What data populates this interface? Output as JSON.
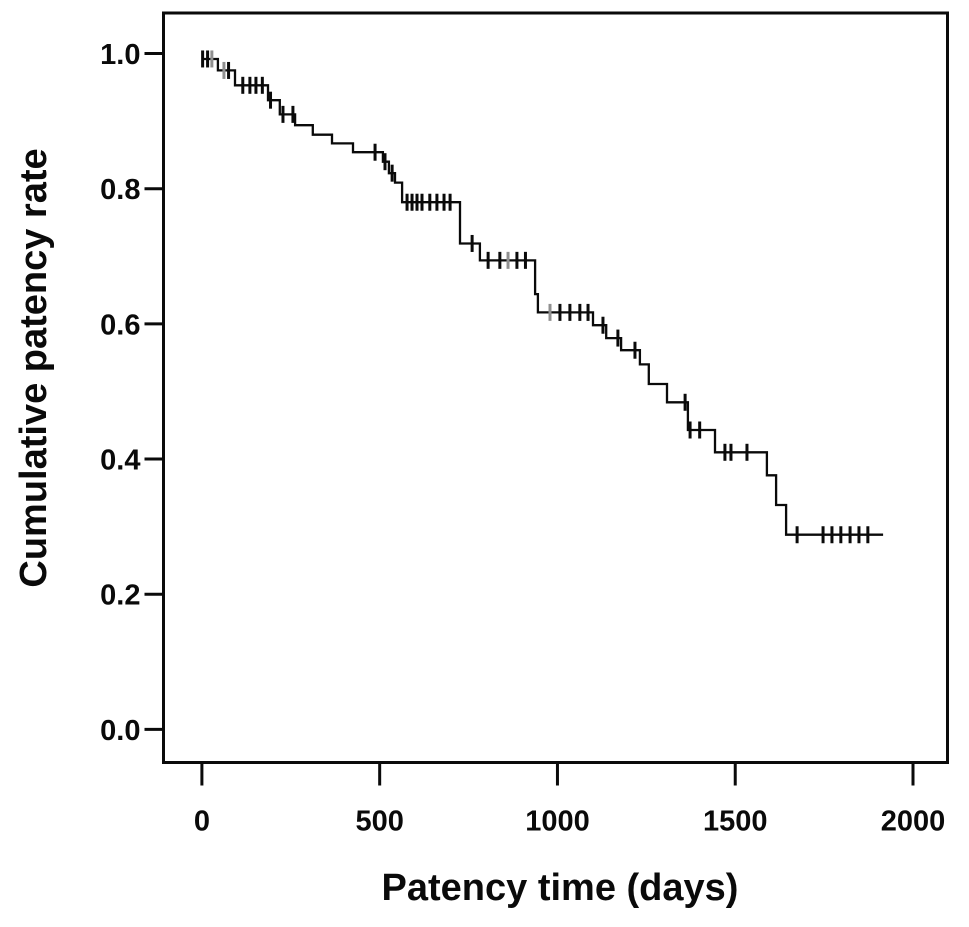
{
  "chart_data": {
    "type": "line",
    "subtype": "kaplan-meier-step-curve",
    "title": "",
    "xlabel": "Patency time (days)",
    "ylabel": "Cumulative patency rate",
    "xlim": [
      -108,
      2097
    ],
    "ylim": [
      -0.049,
      1.06
    ],
    "grid": false,
    "legend": "none",
    "background_color": "#ffffff",
    "line_color": "#0a0a0a",
    "muted_censor_color": "#909090",
    "xticks": [
      {
        "v": 0,
        "label": "0"
      },
      {
        "v": 500,
        "label": "500"
      },
      {
        "v": 1000,
        "label": "1000"
      },
      {
        "v": 1500,
        "label": "1500"
      },
      {
        "v": 2000,
        "label": "2000"
      }
    ],
    "yticks": [
      {
        "v": 1.0,
        "label": "1.0"
      },
      {
        "v": 0.8,
        "label": "0.8"
      },
      {
        "v": 0.6,
        "label": "0.6"
      },
      {
        "v": 0.4,
        "label": "0.4"
      },
      {
        "v": 0.2,
        "label": "0.2"
      },
      {
        "v": 0.0,
        "label": "0.0"
      }
    ],
    "series": [
      {
        "name": "Cumulative patency rate",
        "end_time": 1916,
        "steps": [
          [
            0,
            0.992
          ],
          [
            45,
            0.975
          ],
          [
            93,
            0.953
          ],
          [
            186,
            0.931
          ],
          [
            219,
            0.91
          ],
          [
            262,
            0.894
          ],
          [
            312,
            0.88
          ],
          [
            366,
            0.867
          ],
          [
            425,
            0.854
          ],
          [
            509,
            0.84
          ],
          [
            526,
            0.823
          ],
          [
            543,
            0.809
          ],
          [
            563,
            0.78
          ],
          [
            726,
            0.719
          ],
          [
            782,
            0.694
          ],
          [
            937,
            0.644
          ],
          [
            945,
            0.617
          ],
          [
            1100,
            0.598
          ],
          [
            1137,
            0.579
          ],
          [
            1179,
            0.561
          ],
          [
            1232,
            0.54
          ],
          [
            1257,
            0.511
          ],
          [
            1308,
            0.484
          ],
          [
            1367,
            0.443
          ],
          [
            1443,
            0.41
          ],
          [
            1589,
            0.376
          ],
          [
            1615,
            0.332
          ],
          [
            1643,
            0.288
          ]
        ]
      }
    ],
    "censors": [
      {
        "t": 2,
        "s": 0.992
      },
      {
        "t": 16,
        "s": 0.992
      },
      {
        "t": 28,
        "s": 0.992,
        "muted": true
      },
      {
        "t": 62,
        "s": 0.975,
        "muted": true
      },
      {
        "t": 75,
        "s": 0.975
      },
      {
        "t": 115,
        "s": 0.953
      },
      {
        "t": 135,
        "s": 0.953
      },
      {
        "t": 152,
        "s": 0.953
      },
      {
        "t": 170,
        "s": 0.953
      },
      {
        "t": 193,
        "s": 0.931
      },
      {
        "t": 228,
        "s": 0.91
      },
      {
        "t": 256,
        "s": 0.91
      },
      {
        "t": 487,
        "s": 0.854
      },
      {
        "t": 515,
        "s": 0.84
      },
      {
        "t": 535,
        "s": 0.823
      },
      {
        "t": 577,
        "s": 0.78
      },
      {
        "t": 591,
        "s": 0.78
      },
      {
        "t": 605,
        "s": 0.78
      },
      {
        "t": 619,
        "s": 0.78
      },
      {
        "t": 641,
        "s": 0.78
      },
      {
        "t": 661,
        "s": 0.78
      },
      {
        "t": 681,
        "s": 0.78
      },
      {
        "t": 698,
        "s": 0.78
      },
      {
        "t": 760,
        "s": 0.719
      },
      {
        "t": 805,
        "s": 0.694
      },
      {
        "t": 838,
        "s": 0.694
      },
      {
        "t": 861,
        "s": 0.694,
        "muted": true
      },
      {
        "t": 886,
        "s": 0.694
      },
      {
        "t": 910,
        "s": 0.694
      },
      {
        "t": 979,
        "s": 0.617,
        "muted": true
      },
      {
        "t": 1007,
        "s": 0.617
      },
      {
        "t": 1035,
        "s": 0.617
      },
      {
        "t": 1063,
        "s": 0.617
      },
      {
        "t": 1086,
        "s": 0.617
      },
      {
        "t": 1128,
        "s": 0.598
      },
      {
        "t": 1170,
        "s": 0.579
      },
      {
        "t": 1218,
        "s": 0.561
      },
      {
        "t": 1359,
        "s": 0.484
      },
      {
        "t": 1373,
        "s": 0.443
      },
      {
        "t": 1400,
        "s": 0.443
      },
      {
        "t": 1471,
        "s": 0.41
      },
      {
        "t": 1488,
        "s": 0.41
      },
      {
        "t": 1533,
        "s": 0.41
      },
      {
        "t": 1674,
        "s": 0.288
      },
      {
        "t": 1747,
        "s": 0.288
      },
      {
        "t": 1772,
        "s": 0.288
      },
      {
        "t": 1797,
        "s": 0.288
      },
      {
        "t": 1823,
        "s": 0.288
      },
      {
        "t": 1848,
        "s": 0.288
      },
      {
        "t": 1873,
        "s": 0.288
      }
    ]
  }
}
